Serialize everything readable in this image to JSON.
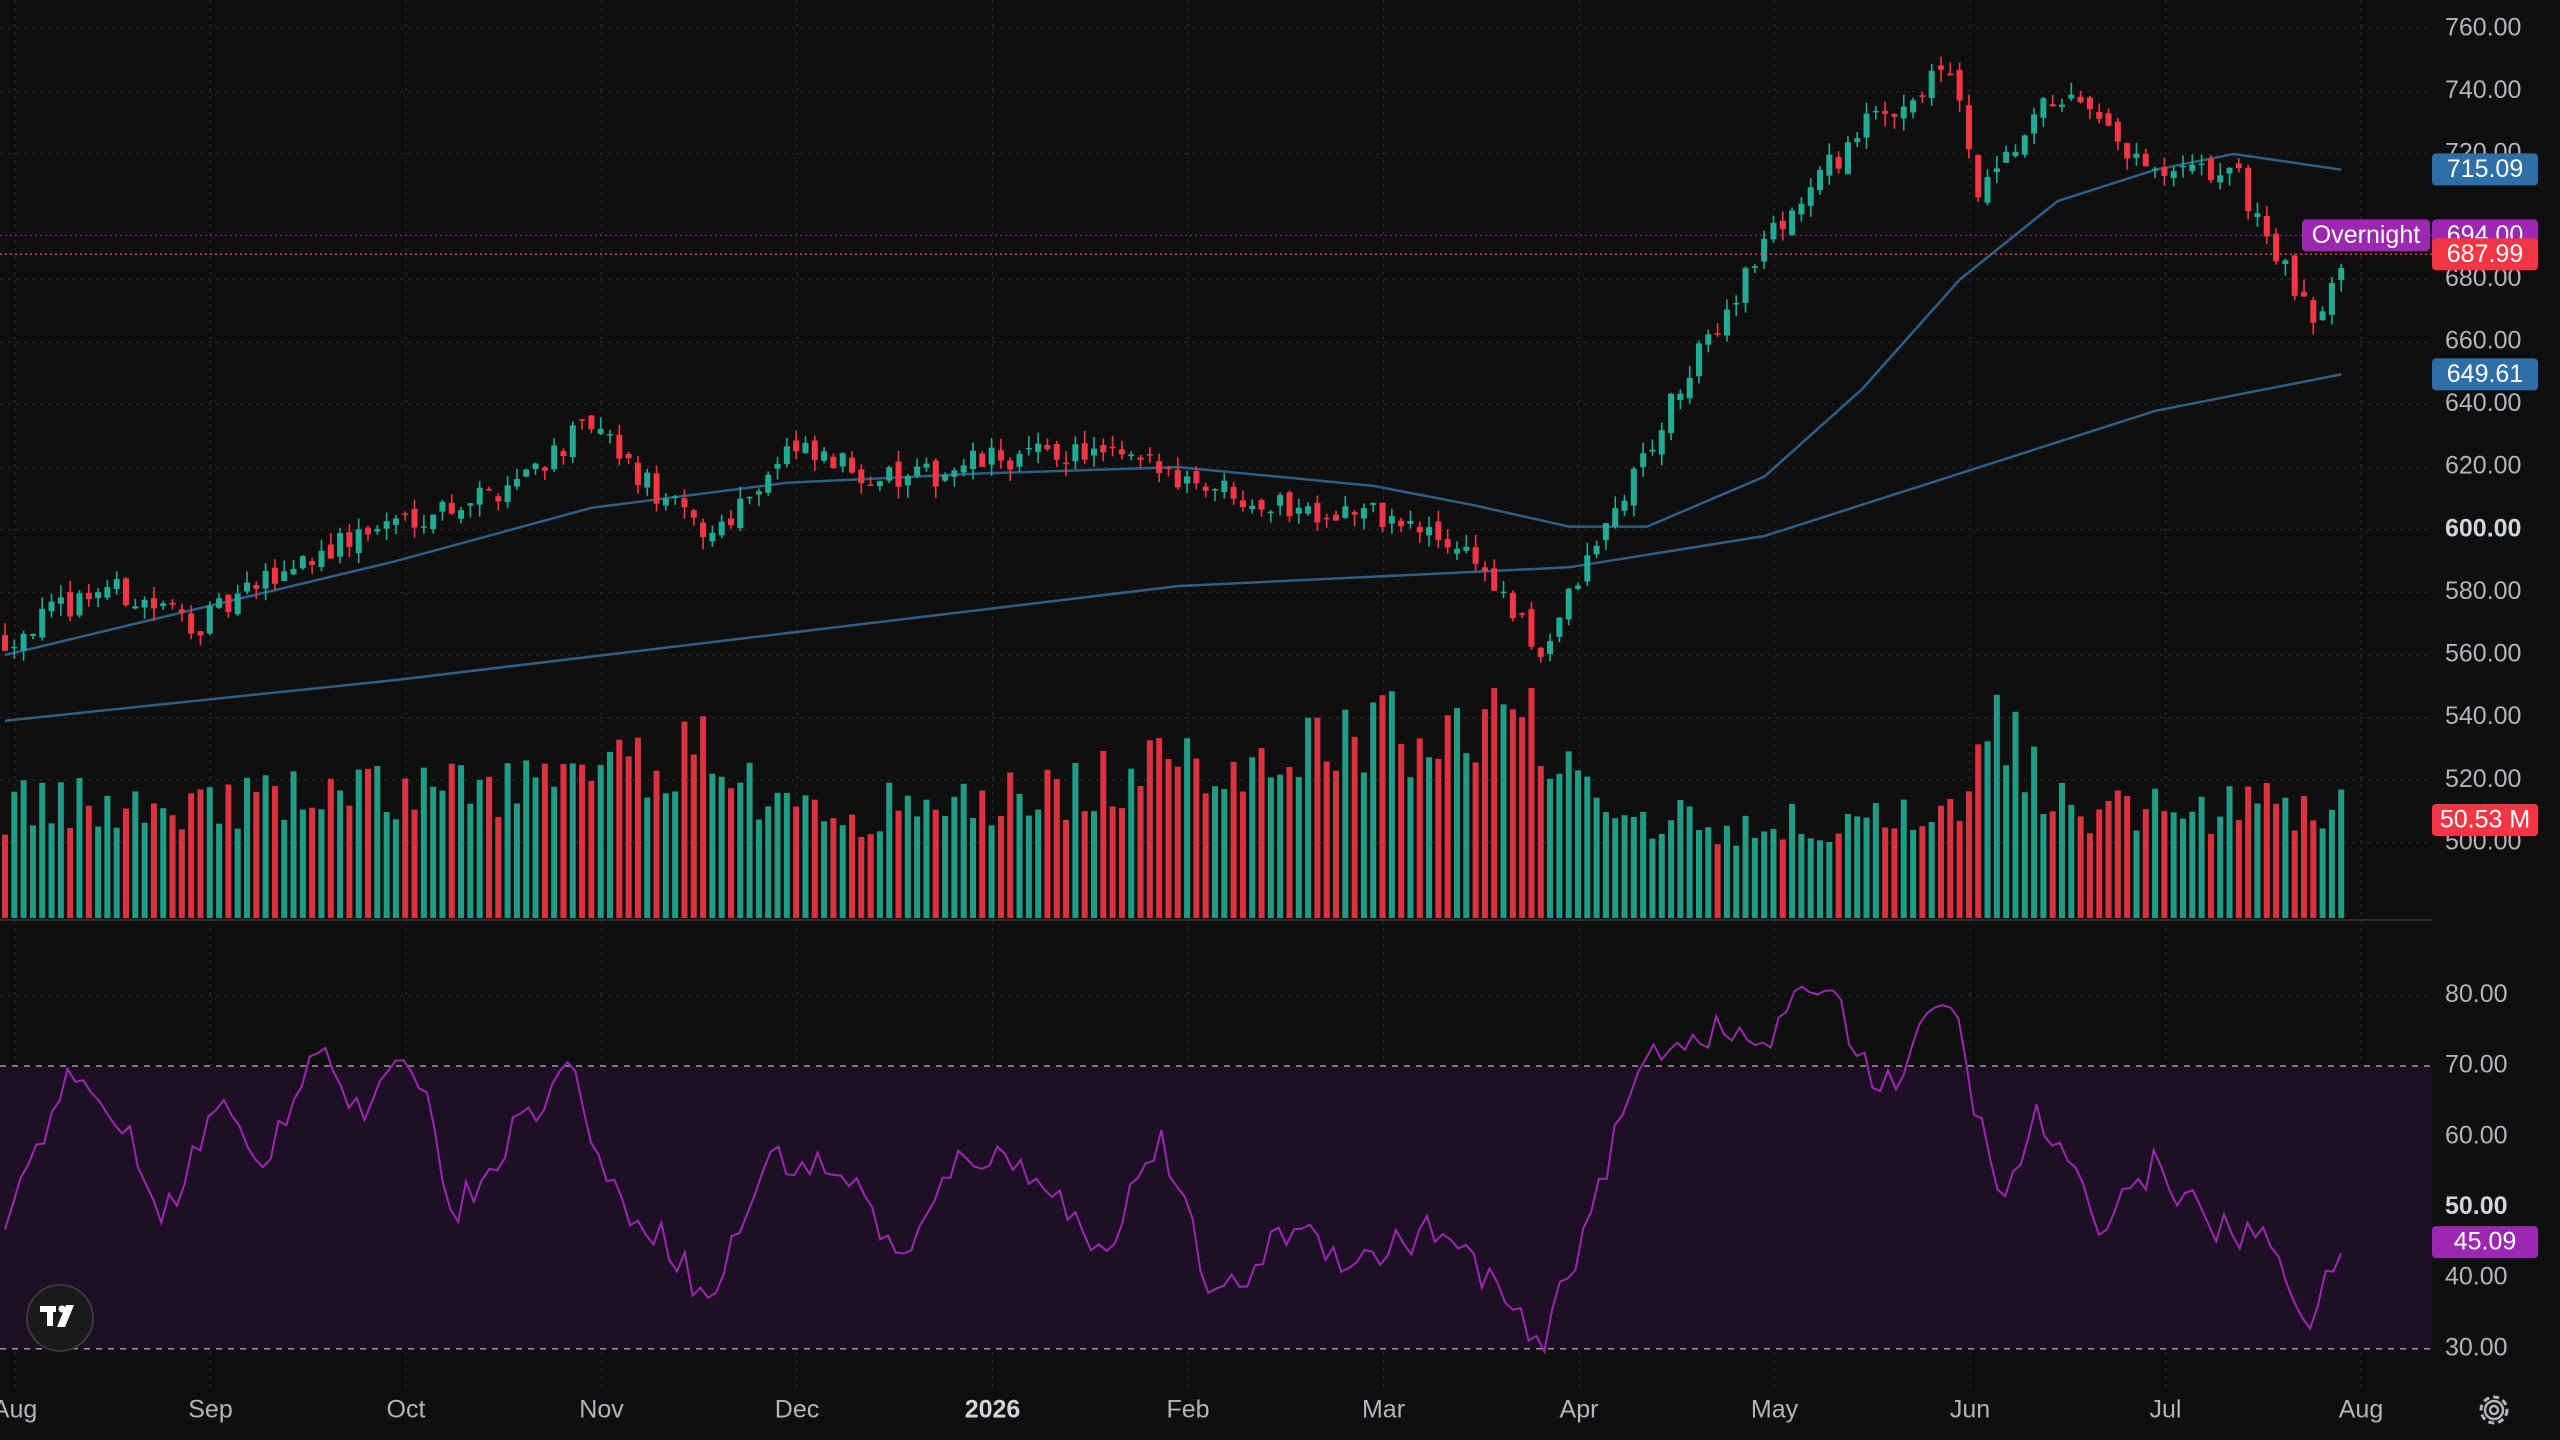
{
  "chart_data": [
    {
      "type": "candlestick",
      "pane": "price",
      "y_axis_ticks": [
        "760.00",
        "740.00",
        "720.00",
        "680.00",
        "660.00",
        "640.00",
        "620.00",
        "600.00",
        "580.00",
        "560.00",
        "540.00",
        "520.00",
        "500.00"
      ],
      "y_axis_bold_tick": "600.00",
      "x_axis_labels": [
        "Aug",
        "Sep",
        "Oct",
        "Nov",
        "Dec",
        "2026",
        "Feb",
        "Mar",
        "Apr",
        "May",
        "Jun",
        "Jul",
        "Aug"
      ],
      "x_axis_bold_label": "2026",
      "ylim": [
        476,
        766
      ],
      "colors": {
        "up": "#22ab94",
        "down": "#f23645",
        "background": "#0f0f0f",
        "grid": "#2a2a2a",
        "moving_average": "#2f5f86",
        "rsi": "#9c27b0"
      },
      "price_path": [
        {
          "month": 0,
          "close": 565
        },
        {
          "month": 0.5,
          "close": 582
        },
        {
          "month": 1,
          "close": 570
        },
        {
          "month": 1.5,
          "close": 590
        },
        {
          "month": 2,
          "close": 603
        },
        {
          "month": 2.5,
          "close": 612
        },
        {
          "month": 3,
          "close": 633
        },
        {
          "month": 3.3,
          "close": 613
        },
        {
          "month": 3.6,
          "close": 598
        },
        {
          "month": 4,
          "close": 625
        },
        {
          "month": 4.6,
          "close": 615
        },
        {
          "month": 5,
          "close": 622
        },
        {
          "month": 5.5,
          "close": 625
        },
        {
          "month": 6,
          "close": 618
        },
        {
          "month": 6.5,
          "close": 608
        },
        {
          "month": 7,
          "close": 605
        },
        {
          "month": 7.5,
          "close": 593
        },
        {
          "month": 7.85,
          "close": 560
        },
        {
          "month": 8.2,
          "close": 602
        },
        {
          "month": 8.6,
          "close": 648
        },
        {
          "month": 9,
          "close": 692
        },
        {
          "month": 9.5,
          "close": 728
        },
        {
          "month": 9.95,
          "close": 747
        },
        {
          "month": 10.1,
          "close": 705
        },
        {
          "month": 10.5,
          "close": 740
        },
        {
          "month": 11,
          "close": 712
        },
        {
          "month": 11.4,
          "close": 715
        },
        {
          "month": 11.8,
          "close": 665
        },
        {
          "month": 11.95,
          "close": 688
        }
      ],
      "ma_50": [
        {
          "month": 0,
          "value": 560
        },
        {
          "month": 2,
          "value": 590
        },
        {
          "month": 3,
          "value": 607
        },
        {
          "month": 4,
          "value": 615
        },
        {
          "month": 5,
          "value": 618
        },
        {
          "month": 6,
          "value": 620
        },
        {
          "month": 6.5,
          "value": 617
        },
        {
          "month": 7,
          "value": 614
        },
        {
          "month": 7.5,
          "value": 608
        },
        {
          "month": 8,
          "value": 601
        },
        {
          "month": 8.4,
          "value": 601
        },
        {
          "month": 9,
          "value": 617
        },
        {
          "month": 9.5,
          "value": 645
        },
        {
          "month": 10,
          "value": 680
        },
        {
          "month": 10.5,
          "value": 705
        },
        {
          "month": 11,
          "value": 715
        },
        {
          "month": 11.4,
          "value": 720
        },
        {
          "month": 11.95,
          "value": 715
        }
      ],
      "ma_200": [
        {
          "month": 0,
          "value": 539
        },
        {
          "month": 2,
          "value": 552
        },
        {
          "month": 4,
          "value": 567
        },
        {
          "month": 6,
          "value": 582
        },
        {
          "month": 8,
          "value": 588
        },
        {
          "month": 9,
          "value": 598
        },
        {
          "month": 10,
          "value": 618
        },
        {
          "month": 11,
          "value": 638
        },
        {
          "month": 11.95,
          "value": 649.61
        }
      ],
      "volume_path": [
        {
          "month": 0,
          "value": 0.48
        },
        {
          "month": 1,
          "value": 0.5
        },
        {
          "month": 2,
          "value": 0.55
        },
        {
          "month": 3,
          "value": 0.6
        },
        {
          "month": 3.6,
          "value": 0.75
        },
        {
          "month": 4,
          "value": 0.45
        },
        {
          "month": 5,
          "value": 0.5
        },
        {
          "month": 6,
          "value": 0.65
        },
        {
          "month": 7,
          "value": 0.8
        },
        {
          "month": 7.85,
          "value": 0.85
        },
        {
          "month": 8.3,
          "value": 0.45
        },
        {
          "month": 9,
          "value": 0.4
        },
        {
          "month": 10,
          "value": 0.42
        },
        {
          "month": 10.2,
          "value": 0.85
        },
        {
          "month": 10.5,
          "value": 0.5
        },
        {
          "month": 11,
          "value": 0.45
        },
        {
          "month": 11.95,
          "value": 0.5
        }
      ],
      "price_tags": [
        {
          "value": 715.09,
          "label": "715.09",
          "color": "#2f6fa8"
        },
        {
          "value": 694.0,
          "label": "694.00",
          "color": "#9c27b0",
          "prefix": "Overnight"
        },
        {
          "value": 687.99,
          "label": "687.99",
          "color": "#f23645"
        },
        {
          "value": 649.61,
          "label": "649.61",
          "color": "#2f6fa8"
        }
      ],
      "volume_tag": {
        "label": "50.53 M",
        "color": "#f23645"
      }
    },
    {
      "type": "line",
      "pane": "rsi",
      "y_axis_ticks": [
        "80.00",
        "70.00",
        "60.00",
        "50.00",
        "40.00",
        "30.00"
      ],
      "y_axis_bold_tick": "50.00",
      "ylim": [
        27,
        85
      ],
      "bands": [
        70,
        30
      ],
      "series": [
        {
          "values": [
            {
              "month": 0,
              "value": 48
            },
            {
              "month": 0.3,
              "value": 68
            },
            {
              "month": 0.6,
              "value": 62
            },
            {
              "month": 0.8,
              "value": 48
            },
            {
              "month": 1.1,
              "value": 65
            },
            {
              "month": 1.3,
              "value": 55
            },
            {
              "month": 1.6,
              "value": 74
            },
            {
              "month": 1.8,
              "value": 63
            },
            {
              "month": 2.1,
              "value": 71
            },
            {
              "month": 2.3,
              "value": 49
            },
            {
              "month": 2.6,
              "value": 61
            },
            {
              "month": 2.9,
              "value": 70
            },
            {
              "month": 3.1,
              "value": 52
            },
            {
              "month": 3.4,
              "value": 45
            },
            {
              "month": 3.6,
              "value": 36
            },
            {
              "month": 3.9,
              "value": 57
            },
            {
              "month": 4.3,
              "value": 55
            },
            {
              "month": 4.6,
              "value": 42
            },
            {
              "month": 4.9,
              "value": 58
            },
            {
              "month": 5.3,
              "value": 55
            },
            {
              "month": 5.6,
              "value": 43
            },
            {
              "month": 5.9,
              "value": 60
            },
            {
              "month": 6.2,
              "value": 36
            },
            {
              "month": 6.6,
              "value": 48
            },
            {
              "month": 6.9,
              "value": 42
            },
            {
              "month": 7.3,
              "value": 47
            },
            {
              "month": 7.6,
              "value": 40
            },
            {
              "month": 7.85,
              "value": 29
            },
            {
              "month": 8.1,
              "value": 49
            },
            {
              "month": 8.4,
              "value": 72
            },
            {
              "month": 8.7,
              "value": 75
            },
            {
              "month": 9,
              "value": 73
            },
            {
              "month": 9.3,
              "value": 83
            },
            {
              "month": 9.6,
              "value": 66
            },
            {
              "month": 9.95,
              "value": 80
            },
            {
              "month": 10.2,
              "value": 50
            },
            {
              "month": 10.4,
              "value": 63
            },
            {
              "month": 10.7,
              "value": 48
            },
            {
              "month": 11,
              "value": 56
            },
            {
              "month": 11.3,
              "value": 47
            },
            {
              "month": 11.6,
              "value": 45
            },
            {
              "month": 11.8,
              "value": 33
            },
            {
              "month": 11.95,
              "value": 45.09
            }
          ]
        }
      ],
      "value_tag": {
        "label": "45.09",
        "color": "#9c27b0"
      }
    }
  ]
}
